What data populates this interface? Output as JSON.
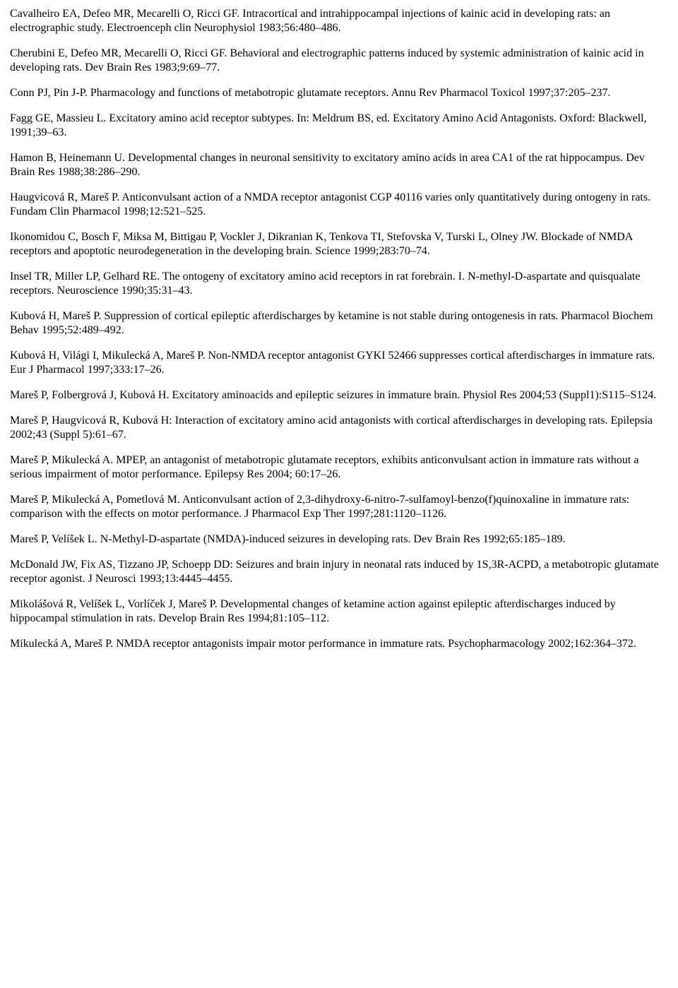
{
  "references": [
    "Cavalheiro EA, Defeo MR, Mecarelli O, Ricci GF. Intracortical and intrahippocampal injections of kainic acid in developing rats: an electrographic study. Electroenceph clin Neurophysiol 1983;56:480–486.",
    "Cherubini E, Defeo MR, Mecarelli O, Ricci GF. Behavioral and electrographic patterns induced by systemic administration of kainic acid in developing rats. Dev Brain Res 1983;9:69–77.",
    "Conn PJ, Pin J-P. Pharmacology and functions of metabotropic glutamate receptors. Annu Rev Pharmacol Toxicol 1997;37:205–237.",
    "Fagg GE, Massieu L. Excitatory amino acid receptor subtypes. In: Meldrum BS, ed. Excitatory Amino Acid Antagonists. Oxford: Blackwell, 1991;39–63.",
    "Hamon B, Heinemann U. Developmental changes in neuronal sensitivity to excitatory amino acids in area CA1 of the rat hippocampus. Dev Brain Res 1988;38:286–290.",
    "Haugvicová R, Mareš P. Anticonvulsant action of a NMDA receptor antagonist CGP 40116 varies only quantitatively during ontogeny in rats. Fundam Clin Pharmacol 1998;12:521–525.",
    "Ikonomidou C, Bosch F, Miksa M, Bittigau P, Vockler J, Dikranian K, Tenkova TI, Stefovska V, Turski L, Olney JW. Blockade of NMDA receptors and apoptotic neurodegeneration in the developing brain. Science 1999;283:70–74.",
    "Insel TR, Miller LP, Gelhard RE. The ontogeny of excitatory amino acid receptors in rat forebrain. I. N-methyl-D-aspartate and quisqualate receptors. Neuroscience 1990;35:31–43.",
    "Kubová H, Mareš P. Suppression of cortical epileptic afterdischarges by ketamine is not stable during ontogenesis in rats. Pharmacol Biochem Behav 1995;52:489–492.",
    "Kubová H, Világi I, Mikulecká A, Mareš P. Non-NMDA receptor antagonist GYKI 52466 suppresses cortical afterdischarges in immature rats. Eur J Pharmacol 1997;333:17–26.",
    "Mareš P, Folbergrová J, Kubová H. Excitatory aminoacids and epileptic seizures in immature brain. Physiol Res 2004;53 (Suppl1):S115–S124.",
    "Mareš P, Haugvicová R, Kubová H: Interaction of excitatory amino acid antagonists with cortical afterdischarges in developing rats. Epilepsia 2002;43 (Suppl 5):61–67.",
    "Mareš P, Mikulecká A. MPEP, an antagonist of metabotropic glutamate receptors, exhibits anticonvulsant action in immature rats without a serious impairment of motor performance. Epilepsy Res 2004; 60:17–26.",
    "Mareš P, Mikulecká A, Pometlová M. Anticonvulsant action of 2,3-dihydroxy-6-nitro-7-sulfamoyl-benzo(f)quinoxaline in immature rats: comparison with the effects on motor performance. J Pharmacol Exp Ther 1997;281:1120–1126.",
    "Mareš P, Velíšek L. N-Methyl-D-aspartate (NMDA)-induced seizures in developing rats. Dev Brain Res 1992;65:185–189.",
    "McDonald JW, Fix AS, Tizzano JP, Schoepp DD: Seizures and brain injury in neonatal rats induced by 1S,3R-ACPD, a metabotropic glutamate receptor agonist. J Neurosci 1993;13:4445–4455.",
    "Mikolášová R, Velíšek L, Vorlíček J, Mareš P. Developmental changes of ketamine action against epileptic afterdischarges induced by hippocampal stimulation in rats. Develop Brain Res 1994;81:105–112.",
    "Mikulecká A, Mareš P. NMDA receptor antagonists impair motor performance in immature rats. Psychopharmacology 2002;162:364–372."
  ]
}
